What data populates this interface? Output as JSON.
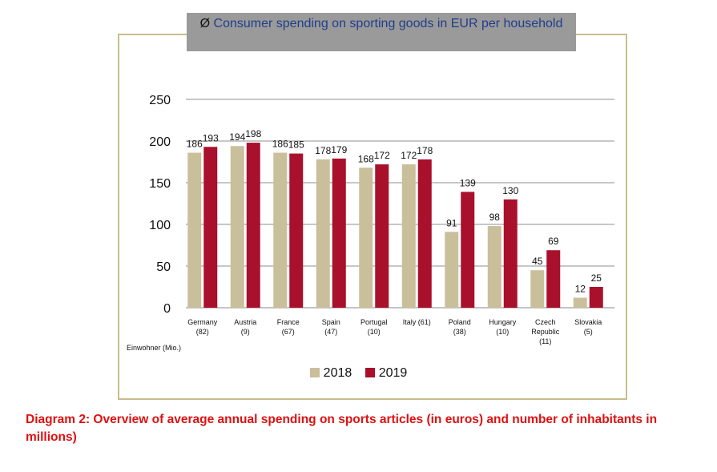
{
  "chart_data": {
    "type": "bar",
    "title_symbol": "Ø",
    "title": "Consumer spending on sporting goods in EUR per household",
    "categories": [
      [
        "Germany",
        "(82)"
      ],
      [
        "Austria",
        "(9)"
      ],
      [
        "France",
        "(67)"
      ],
      [
        "Spain",
        "(47)"
      ],
      [
        "Portugal",
        "(10)"
      ],
      [
        "Italy (61)"
      ],
      [
        "Poland",
        "(38)"
      ],
      [
        "Hungary",
        "(10)"
      ],
      [
        "Czech",
        "Republic",
        "(11)"
      ],
      [
        "Slovakia",
        "(5)"
      ]
    ],
    "series": [
      {
        "name": "2018",
        "color": "#c9bf9b",
        "values": [
          186,
          194,
          186,
          178,
          168,
          172,
          91,
          98,
          45,
          12
        ]
      },
      {
        "name": "2019",
        "color": "#a8102c",
        "values": [
          193,
          198,
          185,
          179,
          172,
          178,
          139,
          130,
          69,
          25
        ]
      }
    ],
    "yticks": [
      0,
      50,
      100,
      150,
      200,
      250
    ],
    "ylim": [
      0,
      250
    ],
    "xlabel_note": "Einwohner (Mio.)",
    "grid": true,
    "legend_position": "bottom"
  },
  "caption": "Diagram 2: Overview of average annual spending on sports articles (in euros) and number of inhabitants in millions)"
}
